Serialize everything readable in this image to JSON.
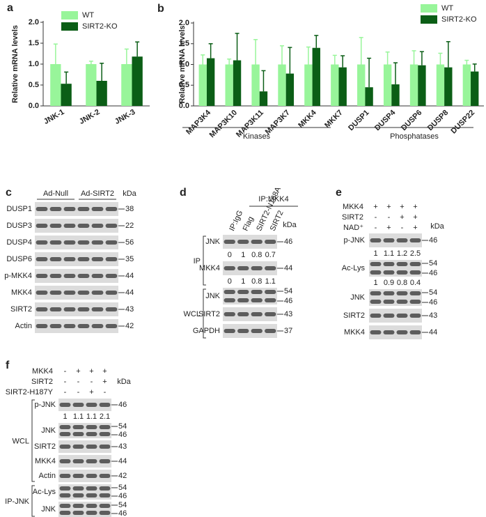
{
  "chart_data": [
    {
      "type": "bar",
      "letter": "a",
      "ylabel": "Relative mRNA levels",
      "categories": [
        "JNK-1",
        "JNK-2",
        "JNK-3"
      ],
      "series": [
        {
          "name": "WT",
          "color": "#98f59a",
          "values": [
            1,
            1,
            1
          ],
          "errors": [
            0.48,
            0.07,
            0.36
          ]
        },
        {
          "name": "SIRT2-KO",
          "color": "#0b5e16",
          "values": [
            0.53,
            0.6,
            1.18
          ],
          "errors": [
            0.28,
            0.42,
            0.35
          ]
        }
      ],
      "ylim": [
        0,
        2
      ],
      "yticks": [
        {
          "value": 0,
          "label": "0.0"
        },
        {
          "value": 0.5,
          "label": "0.5"
        },
        {
          "value": 1,
          "label": "1.0"
        },
        {
          "value": 1.5,
          "label": "1.5"
        },
        {
          "value": 2,
          "label": "2.0"
        }
      ]
    },
    {
      "type": "bar",
      "letter": "b",
      "ylabel": "Relative mRNA levels",
      "categories": [
        "MAP3K4",
        "MAP3K10",
        "MAP3K11",
        "MAP3K7",
        "MKK4",
        "MKK7",
        "DUSP1",
        "DUSP4",
        "DUSP6",
        "DUSP8",
        "DUSP22"
      ],
      "series": [
        {
          "name": "WT",
          "color": "#98f59a",
          "values": [
            1,
            1,
            1,
            1,
            1,
            1,
            1,
            1,
            1,
            1,
            1
          ],
          "errors": [
            0.23,
            0.13,
            0.6,
            0.45,
            0.42,
            0.22,
            0.65,
            0.3,
            0.33,
            0.27,
            0.1
          ]
        },
        {
          "name": "SIRT2-KO",
          "color": "#0b5e16",
          "values": [
            1.15,
            1.1,
            0.35,
            0.78,
            1.4,
            0.93,
            0.45,
            0.52,
            0.98,
            0.93,
            0.83
          ],
          "errors": [
            0.35,
            0.65,
            0.5,
            0.63,
            0.3,
            0.28,
            0.7,
            0.52,
            0.33,
            0.62,
            0.18
          ]
        }
      ],
      "groups": [
        "Kinases",
        "Phosphatases"
      ],
      "ylim": [
        0,
        2
      ],
      "yticks": [
        {
          "value": 0,
          "label": "0.0"
        },
        {
          "value": 0.5,
          "label": "0.5"
        },
        {
          "value": 1,
          "label": "1.0"
        },
        {
          "value": 1.5,
          "label": "1.5"
        },
        {
          "value": 2,
          "label": "2.0"
        }
      ]
    }
  ],
  "blots": {
    "c": {
      "letter": "c",
      "groups": [
        "Ad-Null",
        "Ad-SIRT2"
      ],
      "unit": "kDa",
      "sections": [
        {
          "rows": [
            {
              "label": "DUSP1",
              "mw": [
                38
              ]
            },
            {
              "label": "DUSP3",
              "mw": [
                22
              ]
            },
            {
              "label": "DUSP4",
              "mw": [
                56
              ]
            },
            {
              "label": "DUSP6",
              "mw": [
                35
              ]
            },
            {
              "label": "p-MKK4",
              "mw": [
                44
              ]
            },
            {
              "label": "MKK4",
              "mw": [
                44
              ]
            },
            {
              "label": "SIRT2",
              "mw": [
                43
              ]
            },
            {
              "label": "Actin",
              "mw": [
                42
              ]
            }
          ]
        }
      ]
    },
    "d": {
      "letter": "d",
      "header": "IP:MKK4",
      "columns": [
        "IP:IgG",
        "Flag",
        "SIRT2-N168A",
        "SIRT2"
      ],
      "unit": "kDa",
      "sections": [
        {
          "label": "IP",
          "rows": [
            {
              "label": "JNK",
              "mw": [
                46
              ],
              "quant": [
                0,
                1,
                0.8,
                0.7
              ]
            },
            {
              "label": "MKK4",
              "mw": [
                44
              ],
              "quant": [
                0,
                1,
                0.8,
                1.1
              ]
            }
          ]
        },
        {
          "label": "WCL",
          "rows": [
            {
              "label": "JNK",
              "mw": [
                54,
                46
              ]
            },
            {
              "label": "SIRT2",
              "mw": [
                43
              ]
            },
            {
              "label": "GAPDH",
              "mw": [
                37
              ]
            }
          ]
        }
      ]
    },
    "e": {
      "letter": "e",
      "unit": "kDa",
      "conditions": [
        {
          "label": "MKK4",
          "signs": [
            "+",
            "+",
            "+",
            "+"
          ]
        },
        {
          "label": "SIRT2",
          "signs": [
            "-",
            "-",
            "+",
            "+"
          ]
        },
        {
          "label": "NAD⁺",
          "signs": [
            "-",
            "+",
            "-",
            "+"
          ]
        }
      ],
      "sections": [
        {
          "rows": [
            {
              "label": "p-JNK",
              "mw": [
                46
              ],
              "quant": [
                1,
                1.1,
                1.2,
                2.5
              ]
            },
            {
              "label": "Ac-Lys",
              "mw": [
                54,
                46
              ],
              "quant": [
                1,
                0.9,
                0.8,
                0.4
              ]
            },
            {
              "label": "JNK",
              "mw": [
                54,
                46
              ]
            },
            {
              "label": "SIRT2",
              "mw": [
                43
              ]
            },
            {
              "label": "MKK4",
              "mw": [
                44
              ]
            }
          ]
        }
      ]
    },
    "f": {
      "letter": "f",
      "unit": "kDa",
      "conditions": [
        {
          "label": "MKK4",
          "signs": [
            "-",
            "+",
            "+",
            "+"
          ]
        },
        {
          "label": "SIRT2",
          "signs": [
            "-",
            "-",
            "-",
            "+"
          ]
        },
        {
          "label": "SIRT2-H187Y",
          "signs": [
            "-",
            "-",
            "+",
            "-"
          ]
        }
      ],
      "sections": [
        {
          "label": "WCL",
          "rows": [
            {
              "label": "p-JNK",
              "mw": [
                46
              ],
              "quant": [
                1,
                1.1,
                1.1,
                2.1
              ]
            },
            {
              "label": "JNK",
              "mw": [
                54,
                46
              ]
            },
            {
              "label": "SIRT2",
              "mw": [
                43
              ]
            },
            {
              "label": "MKK4",
              "mw": [
                44
              ]
            },
            {
              "label": "Actin",
              "mw": [
                42
              ]
            }
          ]
        },
        {
          "label": "IP-JNK",
          "rows": [
            {
              "label": "Ac-Lys",
              "mw": [
                54,
                46
              ]
            },
            {
              "label": "JNK",
              "mw": [
                54,
                46
              ]
            }
          ]
        }
      ]
    }
  }
}
